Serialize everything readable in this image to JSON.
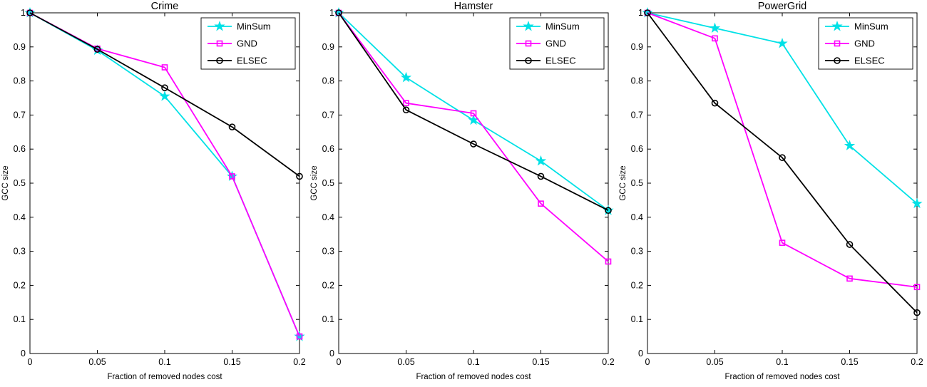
{
  "figure": {
    "background": "#ffffff",
    "axis_color": "#000000",
    "text_color": "#000000"
  },
  "chart_data": [
    {
      "type": "line",
      "title": "Crime",
      "xlabel": "Fraction of removed nodes cost",
      "ylabel": "GCC size",
      "xlim": [
        0,
        0.2
      ],
      "ylim": [
        0,
        1
      ],
      "grid": false,
      "legend_position": "top-right",
      "x": [
        0,
        0.05,
        0.1,
        0.15,
        0.2
      ],
      "x_ticks": [
        0,
        0.05,
        0.1,
        0.15,
        0.2
      ],
      "x_tick_labels": [
        "0",
        "0.05",
        "0.1",
        "0.15",
        "0.2"
      ],
      "y_ticks": [
        0,
        0.1,
        0.2,
        0.3,
        0.4,
        0.5,
        0.6,
        0.7,
        0.8,
        0.9,
        1
      ],
      "y_tick_labels": [
        "0",
        "0.1",
        "0.2",
        "0.3",
        "0.4",
        "0.5",
        "0.6",
        "0.7",
        "0.8",
        "0.9",
        "1"
      ],
      "series": [
        {
          "name": "MinSum",
          "marker": "star",
          "color": "#00e1e6",
          "values": [
            1.0,
            0.89,
            0.755,
            0.52,
            0.05
          ]
        },
        {
          "name": "GND",
          "marker": "square",
          "color": "#ff00ff",
          "values": [
            1.0,
            0.895,
            0.84,
            0.52,
            0.05
          ]
        },
        {
          "name": "ELSEC",
          "marker": "circle",
          "color": "#000000",
          "values": [
            1.0,
            0.893,
            0.78,
            0.665,
            0.52
          ]
        }
      ]
    },
    {
      "type": "line",
      "title": "Hamster",
      "xlabel": "Fraction of removed nodes cost",
      "ylabel": "GCC size",
      "xlim": [
        0,
        0.2
      ],
      "ylim": [
        0,
        1
      ],
      "grid": false,
      "legend_position": "top-right",
      "x": [
        0,
        0.05,
        0.1,
        0.15,
        0.2
      ],
      "x_ticks": [
        0,
        0.05,
        0.1,
        0.15,
        0.2
      ],
      "x_tick_labels": [
        "0",
        "0.05",
        "0.1",
        "0.15",
        "0.2"
      ],
      "y_ticks": [
        0,
        0.1,
        0.2,
        0.3,
        0.4,
        0.5,
        0.6,
        0.7,
        0.8,
        0.9,
        1
      ],
      "y_tick_labels": [
        "0",
        "0.1",
        "0.2",
        "0.3",
        "0.4",
        "0.5",
        "0.6",
        "0.7",
        "0.8",
        "0.9",
        "1"
      ],
      "series": [
        {
          "name": "MinSum",
          "marker": "star",
          "color": "#00e1e6",
          "values": [
            1.0,
            0.81,
            0.685,
            0.565,
            0.42
          ]
        },
        {
          "name": "GND",
          "marker": "square",
          "color": "#ff00ff",
          "values": [
            1.0,
            0.735,
            0.705,
            0.44,
            0.27
          ]
        },
        {
          "name": "ELSEC",
          "marker": "circle",
          "color": "#000000",
          "values": [
            1.0,
            0.715,
            0.615,
            0.52,
            0.42
          ]
        }
      ]
    },
    {
      "type": "line",
      "title": "PowerGrid",
      "xlabel": "Fraction of removed nodes cost",
      "ylabel": "GCC size",
      "xlim": [
        0,
        0.2
      ],
      "ylim": [
        0,
        1
      ],
      "grid": false,
      "legend_position": "top-right",
      "x": [
        0,
        0.05,
        0.1,
        0.15,
        0.2
      ],
      "x_ticks": [
        0,
        0.05,
        0.1,
        0.15,
        0.2
      ],
      "x_tick_labels": [
        "0",
        "0.05",
        "0.1",
        "0.15",
        "0.2"
      ],
      "y_ticks": [
        0,
        0.1,
        0.2,
        0.3,
        0.4,
        0.5,
        0.6,
        0.7,
        0.8,
        0.9,
        1
      ],
      "y_tick_labels": [
        "0",
        "0.1",
        "0.2",
        "0.3",
        "0.4",
        "0.5",
        "0.6",
        "0.7",
        "0.8",
        "0.9",
        "1"
      ],
      "series": [
        {
          "name": "MinSum",
          "marker": "star",
          "color": "#00e1e6",
          "values": [
            1.0,
            0.955,
            0.91,
            0.61,
            0.44
          ]
        },
        {
          "name": "GND",
          "marker": "square",
          "color": "#ff00ff",
          "values": [
            1.0,
            0.925,
            0.325,
            0.22,
            0.195
          ]
        },
        {
          "name": "ELSEC",
          "marker": "circle",
          "color": "#000000",
          "values": [
            1.0,
            0.735,
            0.575,
            0.32,
            0.12
          ]
        }
      ]
    }
  ]
}
